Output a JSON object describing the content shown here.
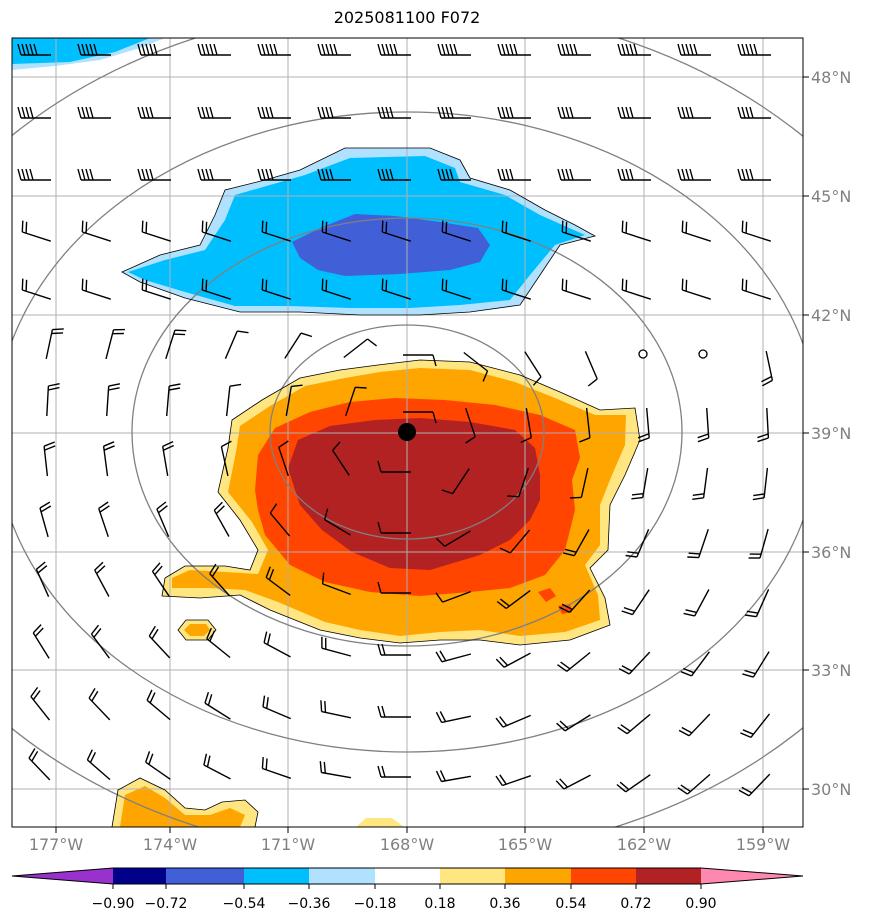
{
  "title": "2025081100 F072",
  "map": {
    "lat_labels": [
      "48°N",
      "45°N",
      "42°N",
      "39°N",
      "36°N",
      "33°N",
      "30°N"
    ],
    "lat_values": [
      48,
      45,
      42,
      39,
      36,
      33,
      30
    ],
    "lon_labels": [
      "177°W",
      "174°W",
      "171°W",
      "168°W",
      "165°W",
      "162°W",
      "159°W"
    ],
    "lon_values": [
      -177,
      -174,
      -171,
      -168,
      -165,
      -162,
      -159
    ],
    "storm_center": {
      "lat": 39.0,
      "lon": -168.0
    },
    "calm_markers": [
      {
        "lat": 41.0,
        "lon": -162.0
      },
      {
        "lat": 41.0,
        "lon": -160.5
      }
    ],
    "range_ring_color": "#808080",
    "grid_color": "#b0b0b0"
  },
  "colorbar": {
    "labels": [
      "−0.90",
      "−0.72",
      "−0.54",
      "−0.36",
      "−0.18",
      "0.18",
      "0.36",
      "0.54",
      "0.72",
      "0.90"
    ],
    "colors": [
      "#9932cc",
      "#00008b",
      "#4160d8",
      "#00bfff",
      "#b0e2ff",
      "#ffffff",
      "#ffe680",
      "#ffa500",
      "#ff4500",
      "#b22222",
      "#ff88b0"
    ]
  }
}
